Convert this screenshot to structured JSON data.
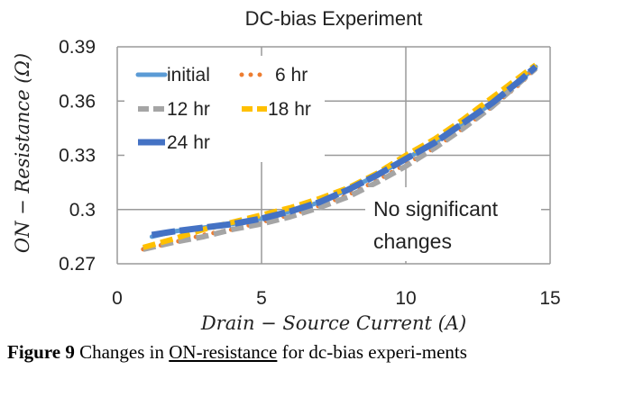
{
  "chart_data": {
    "type": "line",
    "title": "DC-bias Experiment",
    "xlabel": "Drain − Source Current (A)",
    "ylabel": "ON − Resistance (Ω)",
    "xlim": [
      0,
      15
    ],
    "ylim": [
      0.27,
      0.39
    ],
    "x_ticks": [
      "0",
      "5",
      "10",
      "15"
    ],
    "y_ticks": [
      "0.27",
      "0.3",
      "0.33",
      "0.36",
      "0.39"
    ],
    "grid": true,
    "legend_position": "top-left",
    "series": [
      {
        "name": "initial",
        "color": "#5b9bd5",
        "style": "solid",
        "x": [
          1.2,
          2,
          3,
          4,
          5,
          6,
          7,
          8,
          9,
          10,
          11,
          12,
          13,
          14,
          14.5
        ],
        "y": [
          0.285,
          0.288,
          0.29,
          0.292,
          0.295,
          0.299,
          0.304,
          0.311,
          0.319,
          0.328,
          0.337,
          0.348,
          0.359,
          0.372,
          0.379
        ]
      },
      {
        "name": "6 hr",
        "color": "#ed7d31",
        "style": "dotted",
        "x": [
          0.9,
          2,
          3,
          4,
          5,
          6,
          7,
          8,
          9,
          10,
          11,
          12,
          13,
          14,
          14.4
        ],
        "y": [
          0.278,
          0.282,
          0.286,
          0.289,
          0.293,
          0.297,
          0.302,
          0.308,
          0.316,
          0.325,
          0.334,
          0.345,
          0.357,
          0.37,
          0.377
        ]
      },
      {
        "name": "12 hr",
        "color": "#a5a5a5",
        "style": "dashed",
        "x": [
          0.9,
          2,
          3,
          4,
          5,
          6,
          7,
          8,
          9,
          10,
          11,
          12,
          13,
          14,
          14.5
        ],
        "y": [
          0.278,
          0.282,
          0.285,
          0.289,
          0.292,
          0.296,
          0.301,
          0.307,
          0.315,
          0.324,
          0.334,
          0.345,
          0.357,
          0.371,
          0.378
        ]
      },
      {
        "name": "18 hr",
        "color": "#ffc000",
        "style": "dashed",
        "x": [
          0.9,
          2,
          3,
          4,
          5,
          6,
          7,
          8,
          9,
          10,
          11,
          12,
          13,
          14,
          14.5
        ],
        "y": [
          0.279,
          0.284,
          0.289,
          0.293,
          0.297,
          0.301,
          0.306,
          0.312,
          0.32,
          0.33,
          0.339,
          0.35,
          0.362,
          0.374,
          0.38
        ]
      },
      {
        "name": "24 hr",
        "color": "#4472c4",
        "style": "dashed-thick",
        "x": [
          1.2,
          2,
          3,
          4,
          5,
          6,
          7,
          8,
          9,
          10,
          11,
          12,
          13,
          14,
          14.5
        ],
        "y": [
          0.286,
          0.288,
          0.29,
          0.292,
          0.295,
          0.299,
          0.304,
          0.311,
          0.319,
          0.328,
          0.337,
          0.348,
          0.359,
          0.372,
          0.379
        ]
      }
    ],
    "annotation": [
      "No significant",
      "changes"
    ]
  },
  "caption": {
    "label": "Figure 9",
    "text_before": " Changes in ",
    "underlined": "ON-resistance",
    "text_after": " for dc-bias experi-ments"
  }
}
